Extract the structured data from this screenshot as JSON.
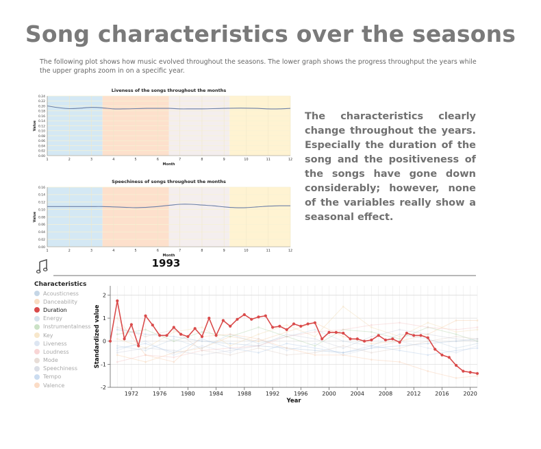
{
  "page": {
    "title": "Song characteristics over the seasons",
    "intro": "The following plot shows how music evolved throughout the seasons. The lower graph shows the progress throughput the years while the upper graphs zoom in on a specific year.",
    "commentary": "The characteristics clearly change throughout the years. Especially the duration of the song and the positiveness of the songs have gone down considerably; however, none of the variables really show a seasonal effect.",
    "selected_year": "1993",
    "music_icon": "music-note-icon"
  },
  "colors": {
    "line": "#6a7fa6",
    "season_bands": [
      "#d4e8f4",
      "#fde0cc",
      "#f4eeee",
      "#fff3d2"
    ],
    "highlight": "#d94a4a",
    "grid": "#e4e4e4"
  },
  "chart_data": [
    {
      "type": "line",
      "title": "Liveness of the songs throughout the months",
      "xlabel": "Month",
      "ylabel": "Value",
      "xlim": [
        1,
        12
      ],
      "ylim": [
        0,
        0.24
      ],
      "xticks": [
        "1",
        "2",
        "3",
        "4",
        "5",
        "6",
        "7",
        "8",
        "9",
        "10",
        "11",
        "12"
      ],
      "yticks": [
        "0.00",
        "0.02",
        "0.04",
        "0.06",
        "0.08",
        "0.10",
        "0.12",
        "0.14",
        "0.16",
        "0.18",
        "0.20",
        "0.22",
        "0.24"
      ],
      "season_breaks": [
        1,
        3.5,
        6.5,
        9.25,
        12
      ],
      "grid": true,
      "x": [
        1,
        1.5,
        2,
        2.5,
        3,
        3.5,
        4,
        4.5,
        5,
        5.5,
        6,
        6.5,
        7,
        7.5,
        8,
        8.5,
        9,
        9.5,
        10,
        10.5,
        11,
        11.5,
        12
      ],
      "values": [
        0.2,
        0.193,
        0.189,
        0.191,
        0.194,
        0.192,
        0.188,
        0.188,
        0.189,
        0.19,
        0.19,
        0.19,
        0.188,
        0.188,
        0.188,
        0.189,
        0.19,
        0.191,
        0.191,
        0.19,
        0.188,
        0.188,
        0.19
      ]
    },
    {
      "type": "line",
      "title": "Speechiness of songs throughout the months",
      "xlabel": "Month",
      "ylabel": "Value",
      "xlim": [
        1,
        12
      ],
      "ylim": [
        0,
        0.16
      ],
      "xticks": [
        "1",
        "2",
        "3",
        "4",
        "5",
        "6",
        "7",
        "8",
        "9",
        "10",
        "11",
        "12"
      ],
      "yticks": [
        "0.00",
        "0.02",
        "0.04",
        "0.06",
        "0.08",
        "0.10",
        "0.12",
        "0.14",
        "0.16"
      ],
      "season_breaks": [
        1,
        3.5,
        6.5,
        9.25,
        12
      ],
      "grid": true,
      "x": [
        1,
        1.5,
        2,
        2.5,
        3,
        3.5,
        4,
        4.5,
        5,
        5.5,
        6,
        6.5,
        7,
        7.5,
        8,
        8.5,
        9,
        9.5,
        10,
        10.5,
        11,
        11.5,
        12
      ],
      "values": [
        0.108,
        0.108,
        0.108,
        0.108,
        0.108,
        0.108,
        0.107,
        0.106,
        0.105,
        0.106,
        0.108,
        0.111,
        0.114,
        0.114,
        0.112,
        0.11,
        0.107,
        0.105,
        0.105,
        0.107,
        0.109,
        0.11,
        0.11
      ]
    },
    {
      "type": "line",
      "title": "",
      "xlabel": "Year",
      "ylabel": "Standardized value",
      "xlim": [
        1969,
        2021
      ],
      "ylim": [
        -2,
        2.4
      ],
      "xticks": [
        "1972",
        "1976",
        "1980",
        "1984",
        "1988",
        "1992",
        "1996",
        "2000",
        "2004",
        "2008",
        "2012",
        "2016",
        "2020"
      ],
      "yticks": [
        "-2",
        "-1",
        "0",
        "1",
        "2"
      ],
      "grid": true,
      "legend": {
        "title": "Characteristics",
        "position": "left"
      },
      "series": [
        {
          "name": "Acousticness",
          "color": "#9fbad6",
          "highlighted": false,
          "x": [
            1970,
            1974,
            1978,
            1982,
            1986,
            1990,
            1994,
            1998,
            2002,
            2006,
            2010,
            2014,
            2018,
            2021
          ],
          "values": [
            0.5,
            0.3,
            0.2,
            0.0,
            -0.1,
            -0.2,
            -0.3,
            -0.4,
            -0.5,
            -0.3,
            -0.2,
            -0.1,
            0.0,
            0.1
          ]
        },
        {
          "name": "Danceability",
          "color": "#f5c79a",
          "highlighted": false,
          "x": [
            1970,
            1974,
            1978,
            1982,
            1986,
            1990,
            1994,
            1998,
            2002,
            2006,
            2010,
            2014,
            2018,
            2021
          ],
          "values": [
            -0.6,
            -0.9,
            -0.5,
            -0.3,
            0.2,
            0.0,
            0.4,
            0.8,
            0.2,
            -0.1,
            0.0,
            0.3,
            0.9,
            0.9
          ]
        },
        {
          "name": "Duration",
          "color": "#d94a4a",
          "highlighted": true,
          "x": [
            1969,
            1970,
            1971,
            1972,
            1973,
            1974,
            1975,
            1976,
            1977,
            1978,
            1979,
            1980,
            1981,
            1982,
            1983,
            1984,
            1985,
            1986,
            1987,
            1988,
            1989,
            1990,
            1991,
            1992,
            1993,
            1994,
            1995,
            1996,
            1997,
            1998,
            1999,
            2000,
            2001,
            2002,
            2003,
            2004,
            2005,
            2006,
            2007,
            2008,
            2009,
            2010,
            2011,
            2012,
            2013,
            2014,
            2015,
            2016,
            2017,
            2018,
            2019,
            2020,
            2021
          ],
          "values": [
            0.0,
            1.75,
            0.1,
            0.72,
            -0.2,
            1.1,
            0.7,
            0.25,
            0.25,
            0.6,
            0.3,
            0.2,
            0.55,
            0.2,
            1.0,
            0.25,
            0.9,
            0.65,
            0.95,
            1.15,
            0.95,
            1.05,
            1.1,
            0.6,
            0.65,
            0.5,
            0.75,
            0.65,
            0.75,
            0.8,
            0.1,
            0.38,
            0.38,
            0.35,
            0.1,
            0.1,
            0.0,
            0.05,
            0.25,
            0.05,
            0.1,
            -0.05,
            0.35,
            0.25,
            0.25,
            0.15,
            -0.35,
            -0.6,
            -0.7,
            -1.05,
            -1.3,
            -1.35,
            -1.4
          ]
        },
        {
          "name": "Energy",
          "color": "#b9cfe0",
          "highlighted": false,
          "x": [
            1970,
            1974,
            1978,
            1982,
            1986,
            1990,
            1994,
            1998,
            2002,
            2006,
            2010,
            2014,
            2018,
            2021
          ],
          "values": [
            -0.2,
            -0.4,
            0.1,
            -0.3,
            0.3,
            -0.1,
            0.2,
            0.5,
            0.0,
            -0.2,
            0.3,
            0.1,
            -0.3,
            -0.1
          ]
        },
        {
          "name": "Instrumentalness",
          "color": "#a8cfa0",
          "highlighted": false,
          "x": [
            1970,
            1974,
            1978,
            1982,
            1986,
            1990,
            1994,
            1998,
            2002,
            2006,
            2010,
            2014,
            2018,
            2021
          ],
          "values": [
            0.3,
            0.5,
            0.0,
            0.4,
            0.2,
            0.6,
            0.2,
            -0.2,
            0.5,
            0.4,
            0.1,
            0.6,
            0.3,
            0.0
          ]
        },
        {
          "name": "Key",
          "color": "#f1d7a8",
          "highlighted": false,
          "x": [
            1970,
            1974,
            1978,
            1982,
            1986,
            1990,
            1994,
            1998,
            2002,
            2006,
            2010,
            2014,
            2018,
            2021
          ],
          "values": [
            0.1,
            -0.3,
            0.4,
            0.6,
            -0.2,
            0.3,
            0.7,
            0.2,
            1.5,
            0.6,
            0.2,
            0.8,
            0.4,
            0.5
          ]
        },
        {
          "name": "Liveness",
          "color": "#c7d5ea",
          "highlighted": false,
          "x": [
            1970,
            1974,
            1978,
            1982,
            1986,
            1990,
            1994,
            1998,
            2002,
            2006,
            2010,
            2014,
            2018,
            2021
          ],
          "values": [
            -0.4,
            0.0,
            -0.6,
            -0.2,
            -0.5,
            0.1,
            -0.4,
            -0.1,
            -0.6,
            -0.3,
            0.0,
            -0.3,
            -0.5,
            -0.2
          ]
        },
        {
          "name": "Loudness",
          "color": "#f4b9b9",
          "highlighted": false,
          "x": [
            1970,
            1974,
            1978,
            1982,
            1986,
            1990,
            1994,
            1998,
            2002,
            2006,
            2010,
            2014,
            2018,
            2021
          ],
          "values": [
            -0.9,
            -0.6,
            -0.7,
            -0.4,
            -0.3,
            -0.2,
            0.2,
            0.4,
            0.5,
            0.7,
            0.8,
            0.6,
            0.5,
            0.6
          ]
        },
        {
          "name": "Mode",
          "color": "#d8c6bd",
          "highlighted": false,
          "x": [
            1970,
            1974,
            1978,
            1982,
            1986,
            1990,
            1994,
            1998,
            2002,
            2006,
            2010,
            2014,
            2018,
            2021
          ],
          "values": [
            0.6,
            0.2,
            0.5,
            -0.4,
            -0.6,
            -0.3,
            -0.6,
            -0.5,
            -0.2,
            -0.5,
            -0.3,
            0.0,
            0.2,
            0.1
          ]
        },
        {
          "name": "Speechiness",
          "color": "#c3c8d6",
          "highlighted": false,
          "x": [
            1970,
            1974,
            1978,
            1982,
            1986,
            1990,
            1994,
            1998,
            2002,
            2006,
            2010,
            2014,
            2018,
            2021
          ],
          "values": [
            -0.5,
            -0.3,
            -0.4,
            -0.6,
            -0.4,
            -0.2,
            0.3,
            0.1,
            -0.3,
            0.2,
            0.5,
            0.3,
            0.1,
            0.0
          ]
        },
        {
          "name": "Tempo",
          "color": "#a9c5e6",
          "highlighted": false,
          "x": [
            1970,
            1974,
            1978,
            1982,
            1986,
            1990,
            1994,
            1998,
            2002,
            2006,
            2010,
            2014,
            2018,
            2021
          ],
          "values": [
            -0.3,
            -0.1,
            -0.5,
            0.1,
            -0.3,
            -0.5,
            -0.1,
            -0.3,
            -0.5,
            -0.2,
            -0.4,
            -0.6,
            -0.4,
            -0.3
          ]
        },
        {
          "name": "Valence",
          "color": "#f8c4a0",
          "highlighted": false,
          "x": [
            1970,
            1974,
            1978,
            1982,
            1986,
            1990,
            1994,
            1998,
            2002,
            2006,
            2010,
            2014,
            2018,
            2021
          ],
          "values": [
            1.0,
            -0.6,
            -0.9,
            0.2,
            0.3,
            0.1,
            -0.3,
            -0.6,
            -0.6,
            -0.8,
            -0.9,
            -1.3,
            -1.6,
            -1.5
          ]
        }
      ]
    }
  ]
}
